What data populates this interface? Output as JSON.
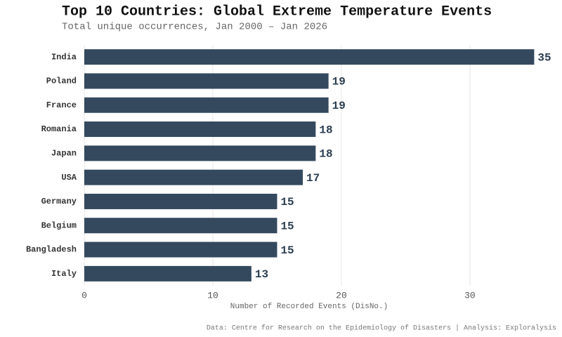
{
  "chart_data": {
    "type": "hbar",
    "title": "Top 10 Countries: Global Extreme Temperature Events",
    "subtitle": "Total unique occurrences, Jan 2000 – Jan 2026",
    "x_label": "Number of Recorded Events (DisNo.)",
    "caption": "Data: Centre for Research on the Epidemiology of Disasters | Analysis: Exploralysis",
    "categories": [
      "India",
      "Poland",
      "France",
      "Romania",
      "Japan",
      "USA",
      "Germany",
      "Belgium",
      "Bangladesh",
      "Italy"
    ],
    "values": [
      35,
      19,
      19,
      18,
      18,
      17,
      15,
      15,
      15,
      13
    ],
    "color": "#34495e",
    "xlim": [
      0,
      37
    ],
    "xticks": [
      0,
      10,
      20,
      30
    ],
    "grid": true
  }
}
